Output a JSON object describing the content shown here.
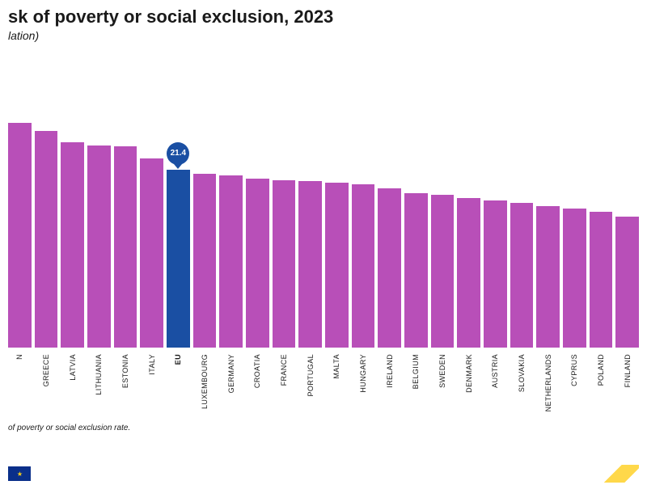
{
  "chart": {
    "type": "bar",
    "title": "sk of poverty or social exclusion, 2023",
    "subtitle": "lation)",
    "footnote": "of poverty or social exclusion rate.",
    "background_color": "#ffffff",
    "title_fontsize": 22,
    "subtitle_fontsize": 14,
    "label_fontsize": 9,
    "bar_color": "#b84fb8",
    "highlight_color": "#1a4fa3",
    "callout_bg": "#1a4fa3",
    "callout_text_color": "#ffffff",
    "text_color": "#1a1a1a",
    "ylim_max": 35,
    "bars": [
      {
        "label": "N",
        "value": 27.0,
        "highlight": false
      },
      {
        "label": "GREECE",
        "value": 26.1,
        "highlight": false
      },
      {
        "label": "LATVIA",
        "value": 24.7,
        "highlight": false
      },
      {
        "label": "LITHUANIA",
        "value": 24.3,
        "highlight": false
      },
      {
        "label": "ESTONIA",
        "value": 24.2,
        "highlight": false
      },
      {
        "label": "ITALY",
        "value": 22.8,
        "highlight": false
      },
      {
        "label": "EU",
        "value": 21.4,
        "highlight": true,
        "callout": "21.4"
      },
      {
        "label": "LUXEMBOURG",
        "value": 20.9,
        "highlight": false
      },
      {
        "label": "GERMANY",
        "value": 20.7,
        "highlight": false
      },
      {
        "label": "CROATIA",
        "value": 20.3,
        "highlight": false
      },
      {
        "label": "FRANCE",
        "value": 20.1,
        "highlight": false
      },
      {
        "label": "PORTUGAL",
        "value": 20.0,
        "highlight": false
      },
      {
        "label": "MALTA",
        "value": 19.8,
        "highlight": false
      },
      {
        "label": "HUNGARY",
        "value": 19.6,
        "highlight": false
      },
      {
        "label": "IRELAND",
        "value": 19.2,
        "highlight": false
      },
      {
        "label": "BELGIUM",
        "value": 18.6,
        "highlight": false
      },
      {
        "label": "SWEDEN",
        "value": 18.4,
        "highlight": false
      },
      {
        "label": "DENMARK",
        "value": 18.0,
        "highlight": false
      },
      {
        "label": "AUSTRIA",
        "value": 17.7,
        "highlight": false
      },
      {
        "label": "SLOVAKIA",
        "value": 17.4,
        "highlight": false
      },
      {
        "label": "NETHERLANDS",
        "value": 17.0,
        "highlight": false
      },
      {
        "label": "CYPRUS",
        "value": 16.7,
        "highlight": false
      },
      {
        "label": "POLAND",
        "value": 16.3,
        "highlight": false
      },
      {
        "label": "FINLAND",
        "value": 15.8,
        "highlight": false
      }
    ]
  }
}
